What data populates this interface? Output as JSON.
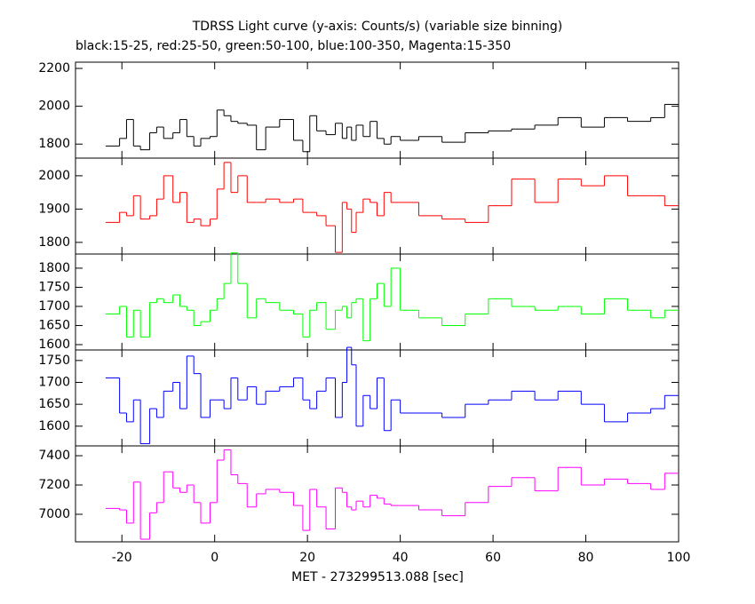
{
  "chart_data": [
    {
      "type": "histogram",
      "title": "TDRSS Light curve (y-axis: Counts/s) (variable size binning)",
      "subtitle": "black:15-25, red:25-50, green:50-100, blue:100-350, Magenta:15-350",
      "color": "#000000",
      "bins": [
        -23.5,
        -20.5,
        -19,
        -17.5,
        -16,
        -14,
        -12.5,
        -11,
        -9,
        -7.5,
        -6,
        -4.5,
        -3,
        -1,
        0.5,
        2,
        3.5,
        5,
        7,
        9,
        11,
        14,
        17,
        19,
        20.5,
        22,
        24,
        26,
        27.5,
        28.5,
        29.5,
        30.5,
        32,
        33.5,
        35,
        36.5,
        38,
        40,
        44,
        49,
        54,
        59,
        64,
        69,
        74,
        79,
        84,
        89,
        94,
        97,
        100
      ],
      "values": [
        1790,
        1830,
        1930,
        1790,
        1770,
        1860,
        1890,
        1830,
        1860,
        1930,
        1840,
        1790,
        1830,
        1840,
        1980,
        1950,
        1920,
        1910,
        1900,
        1770,
        1890,
        1930,
        1820,
        1760,
        1950,
        1870,
        1850,
        1910,
        1830,
        1890,
        1820,
        1900,
        1840,
        1920,
        1830,
        1800,
        1840,
        1820,
        1840,
        1810,
        1860,
        1870,
        1880,
        1900,
        1940,
        1890,
        1940,
        1920,
        1940,
        2010
      ],
      "ylim": [
        1726,
        2233
      ],
      "yticks": [
        1800,
        2000,
        2200
      ]
    },
    {
      "type": "histogram",
      "color": "#ff0000",
      "bins": [
        -23.5,
        -20.5,
        -19,
        -17.5,
        -16,
        -14,
        -12.5,
        -11,
        -9,
        -7.5,
        -6,
        -4.5,
        -3,
        -1,
        0.5,
        2,
        3.5,
        5,
        7,
        9,
        11,
        14,
        17,
        19,
        20.5,
        22,
        24,
        26,
        27.5,
        28.5,
        29.5,
        30.5,
        32,
        33.5,
        35,
        36.5,
        38,
        40,
        44,
        49,
        54,
        59,
        64,
        69,
        74,
        79,
        84,
        89,
        94,
        97,
        100
      ],
      "values": [
        1860,
        1890,
        1880,
        1940,
        1870,
        1880,
        1930,
        2000,
        1920,
        1950,
        1860,
        1870,
        1850,
        1870,
        1960,
        2040,
        1950,
        2000,
        1920,
        1920,
        1930,
        1920,
        1930,
        1890,
        1890,
        1880,
        1850,
        1770,
        1920,
        1900,
        1830,
        1890,
        1930,
        1920,
        1880,
        1950,
        1920,
        1920,
        1880,
        1870,
        1860,
        1910,
        1990,
        1920,
        1990,
        1970,
        2000,
        1940,
        1940,
        1910
      ],
      "ylim": [
        1765,
        2053
      ],
      "yticks": [
        1800,
        1900,
        2000
      ]
    },
    {
      "type": "histogram",
      "color": "#00ff00",
      "bins": [
        -23.5,
        -20.5,
        -19,
        -17.5,
        -16,
        -14,
        -12.5,
        -11,
        -9,
        -7.5,
        -6,
        -4.5,
        -3,
        -1,
        0.5,
        2,
        3.5,
        5,
        7,
        9,
        11,
        14,
        17,
        19,
        20.5,
        22,
        24,
        26,
        27.5,
        28.5,
        29.5,
        30.5,
        32,
        33.5,
        35,
        36.5,
        38,
        40,
        44,
        49,
        54,
        59,
        64,
        69,
        74,
        79,
        84,
        89,
        94,
        97,
        100
      ],
      "values": [
        1680,
        1700,
        1620,
        1690,
        1620,
        1710,
        1720,
        1710,
        1730,
        1700,
        1690,
        1650,
        1660,
        1690,
        1720,
        1760,
        1840,
        1760,
        1670,
        1720,
        1710,
        1690,
        1680,
        1620,
        1690,
        1710,
        1640,
        1690,
        1700,
        1670,
        1710,
        1720,
        1610,
        1720,
        1760,
        1700,
        1800,
        1690,
        1670,
        1650,
        1680,
        1720,
        1700,
        1690,
        1700,
        1680,
        1720,
        1690,
        1670,
        1690
      ],
      "ylim": [
        1586,
        1837
      ],
      "yticks": [
        1600,
        1650,
        1700,
        1750,
        1800
      ]
    },
    {
      "type": "histogram",
      "color": "#0000ff",
      "bins": [
        -23.5,
        -20.5,
        -19,
        -17.5,
        -16,
        -14,
        -12.5,
        -11,
        -9,
        -7.5,
        -6,
        -4.5,
        -3,
        -1,
        0.5,
        2,
        3.5,
        5,
        7,
        9,
        11,
        14,
        17,
        19,
        20.5,
        22,
        24,
        26,
        27.5,
        28.5,
        29.5,
        30.5,
        32,
        33.5,
        35,
        36.5,
        38,
        40,
        44,
        49,
        54,
        59,
        64,
        69,
        74,
        79,
        84,
        89,
        94,
        97,
        100
      ],
      "values": [
        1710,
        1630,
        1610,
        1660,
        1560,
        1640,
        1620,
        1680,
        1700,
        1640,
        1760,
        1720,
        1620,
        1660,
        1660,
        1640,
        1710,
        1660,
        1690,
        1650,
        1680,
        1690,
        1710,
        1660,
        1640,
        1680,
        1710,
        1620,
        1700,
        1780,
        1740,
        1600,
        1670,
        1640,
        1710,
        1590,
        1660,
        1630,
        1630,
        1620,
        1650,
        1660,
        1680,
        1660,
        1680,
        1650,
        1610,
        1630,
        1640,
        1670
      ],
      "ylim": [
        1555,
        1774
      ],
      "yticks": [
        1600,
        1650,
        1700,
        1750
      ]
    },
    {
      "type": "histogram",
      "color": "#ff00ff",
      "bins": [
        -23.5,
        -20.5,
        -19,
        -17.5,
        -16,
        -14,
        -12.5,
        -11,
        -9,
        -7.5,
        -6,
        -4.5,
        -3,
        -1,
        0.5,
        2,
        3.5,
        5,
        7,
        9,
        11,
        14,
        17,
        19,
        20.5,
        22,
        24,
        26,
        27.5,
        28.5,
        29.5,
        30.5,
        32,
        33.5,
        35,
        36.5,
        38,
        40,
        44,
        49,
        54,
        59,
        64,
        69,
        74,
        79,
        84,
        89,
        94,
        97,
        100
      ],
      "values": [
        7040,
        7030,
        6940,
        7220,
        6830,
        7010,
        7080,
        7290,
        7180,
        7150,
        7200,
        7080,
        6940,
        7080,
        7370,
        7440,
        7270,
        7210,
        7050,
        7140,
        7170,
        7150,
        7060,
        6890,
        7170,
        7050,
        6900,
        7180,
        7150,
        7050,
        7030,
        7090,
        7050,
        7130,
        7110,
        7070,
        7060,
        7060,
        7030,
        6990,
        7080,
        7190,
        7250,
        7160,
        7320,
        7200,
        7240,
        7210,
        7170,
        7280
      ],
      "ylim": [
        6812,
        7467
      ],
      "yticks": [
        7000,
        7200,
        7400
      ],
      "xlabel": "MET - 273299513.088 [sec]",
      "xlim": [
        -30,
        100
      ],
      "xticks": [
        -20,
        0,
        20,
        40,
        60,
        80,
        100
      ]
    }
  ]
}
